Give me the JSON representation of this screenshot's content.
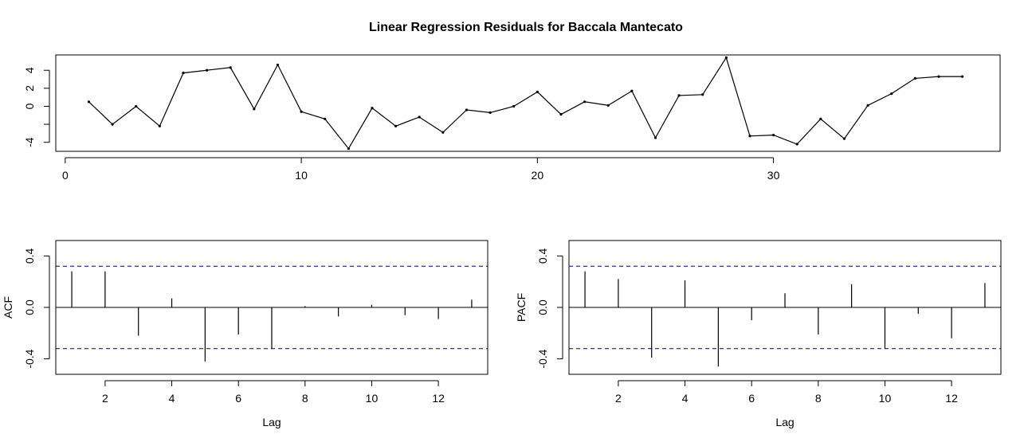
{
  "title": "Linear Regression Residuals for Baccala Mantecato",
  "colors": {
    "line": "#000000",
    "background": "#ffffff",
    "bounds": "#000080"
  },
  "chart_data": [
    {
      "type": "line",
      "title": "Linear Regression Residuals for Baccala Mantecato",
      "xlabel": "",
      "ylabel": "",
      "xlim": [
        -0.4,
        39.6
      ],
      "ylim": [
        -5.0,
        5.7
      ],
      "x_ticks": [
        0,
        10,
        20,
        30
      ],
      "y_ticks": [
        -4,
        0,
        2,
        4
      ],
      "y_tick_labels": [
        "-4",
        "",
        "0",
        "2",
        "4"
      ],
      "y_tick_positions": [
        -4,
        -2,
        0,
        2,
        4
      ],
      "points_shown": true,
      "grid": false,
      "x": [
        1,
        2,
        3,
        4,
        5,
        6,
        7,
        8,
        9,
        10,
        11,
        12,
        13,
        14,
        15,
        16,
        17,
        18,
        19,
        20,
        21,
        22,
        23,
        24,
        25,
        26,
        27,
        28,
        29,
        30,
        31,
        32,
        33,
        34,
        35,
        36,
        37,
        38
      ],
      "values": [
        0.5,
        -2.0,
        0.0,
        -2.2,
        3.7,
        4.0,
        4.3,
        -0.3,
        4.6,
        -0.6,
        -1.4,
        -4.7,
        -0.2,
        -2.2,
        -1.2,
        -2.9,
        -0.4,
        -0.7,
        0.0,
        1.6,
        -0.9,
        0.5,
        0.1,
        1.7,
        -3.5,
        1.2,
        1.3,
        5.4,
        -3.3,
        -3.2,
        -4.2,
        -1.4,
        -3.6,
        0.1,
        1.4,
        3.1,
        3.3,
        3.3
      ]
    },
    {
      "type": "bar",
      "title": "",
      "xlabel": "Lag",
      "ylabel": "ACF",
      "xlim": [
        0.52,
        13.48
      ],
      "ylim": [
        -0.52,
        0.52
      ],
      "x_ticks": [
        2,
        4,
        6,
        8,
        10,
        12
      ],
      "y_ticks": [
        -0.4,
        0.0,
        0.4
      ],
      "y_tick_labels": [
        "-0.4",
        "0.0",
        "0.4"
      ],
      "ci": 0.32,
      "grid": false,
      "lags": [
        1,
        2,
        3,
        4,
        5,
        6,
        7,
        8,
        9,
        10,
        11,
        12,
        13
      ],
      "values": [
        0.28,
        0.28,
        -0.22,
        0.07,
        -0.42,
        -0.21,
        -0.32,
        0.01,
        -0.07,
        0.02,
        -0.06,
        -0.09,
        0.06
      ]
    },
    {
      "type": "bar",
      "title": "",
      "xlabel": "Lag",
      "ylabel": "PACF",
      "xlim": [
        0.52,
        13.48
      ],
      "ylim": [
        -0.52,
        0.52
      ],
      "x_ticks": [
        2,
        4,
        6,
        8,
        10,
        12
      ],
      "y_ticks": [
        -0.4,
        0.0,
        0.4
      ],
      "y_tick_labels": [
        "-0.4",
        "0.0",
        "0.4"
      ],
      "ci": 0.32,
      "grid": false,
      "lags": [
        1,
        2,
        3,
        4,
        5,
        6,
        7,
        8,
        9,
        10,
        11,
        12,
        13
      ],
      "values": [
        0.28,
        0.22,
        -0.39,
        0.21,
        -0.46,
        -0.1,
        0.11,
        -0.21,
        0.18,
        -0.32,
        -0.05,
        -0.24,
        0.19
      ]
    }
  ]
}
